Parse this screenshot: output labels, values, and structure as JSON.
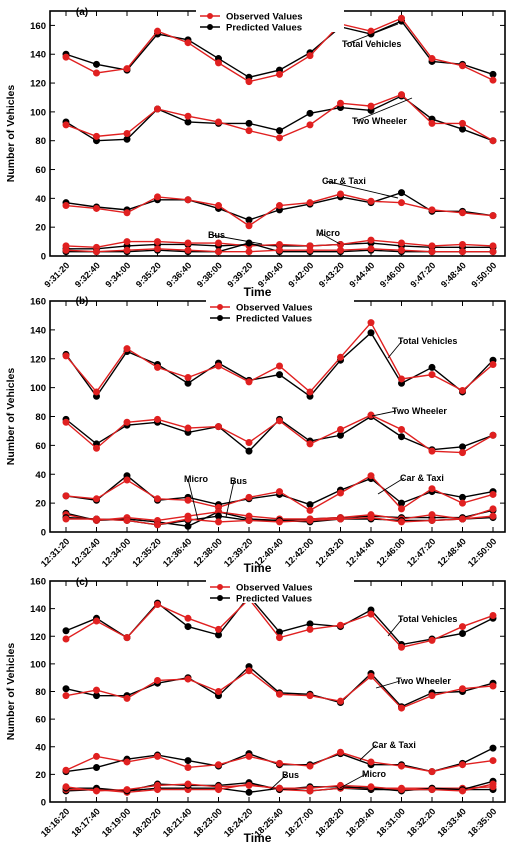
{
  "chart_data": [
    {
      "type": "line",
      "panel_label": "(a)",
      "ylabel": "Number of Vehicles",
      "xlabel": "Time",
      "ylim": [
        0,
        170
      ],
      "yticks": [
        0,
        20,
        40,
        60,
        80,
        100,
        120,
        140,
        160
      ],
      "categories": [
        "9:31:20",
        "9:32:40",
        "9:34:00",
        "9:35:20",
        "9:36:40",
        "9:38:00",
        "9:39:20",
        "9:40:40",
        "9:42:00",
        "9:43:20",
        "9:44:40",
        "9:46:00",
        "9:47:20",
        "9:48:40",
        "9:50:00"
      ],
      "legend": {
        "position": "top-center",
        "entries": [
          {
            "name": "Observed Values",
            "color": "#e02020"
          },
          {
            "name": "Predicted Values",
            "color": "#000000"
          }
        ]
      },
      "groups": [
        {
          "label": "Total Vehicles",
          "observed": [
            138,
            127,
            130,
            156,
            148,
            134,
            121,
            126,
            139,
            161,
            156,
            165,
            137,
            132,
            122
          ],
          "predicted": [
            140,
            133,
            129,
            154,
            150,
            137,
            124,
            129,
            141,
            159,
            154,
            163,
            135,
            133,
            126
          ]
        },
        {
          "label": "Two Wheeler",
          "observed": [
            91,
            83,
            85,
            102,
            97,
            93,
            87,
            82,
            91,
            106,
            104,
            112,
            92,
            92,
            80
          ],
          "predicted": [
            93,
            80,
            81,
            102,
            93,
            92,
            92,
            87,
            99,
            103,
            101,
            111,
            95,
            88,
            80
          ]
        },
        {
          "label": "Car & Taxi",
          "observed": [
            35,
            33,
            30,
            41,
            39,
            35,
            21,
            35,
            37,
            43,
            38,
            37,
            32,
            30,
            28
          ],
          "predicted": [
            37,
            34,
            32,
            39,
            39,
            33,
            25,
            32,
            36,
            41,
            37,
            44,
            31,
            31,
            28
          ]
        },
        {
          "label": "Micro",
          "observed": [
            7,
            6,
            10,
            10,
            9,
            9,
            7,
            8,
            7,
            8,
            11,
            9,
            7,
            8,
            7
          ],
          "predicted": [
            5,
            5,
            7,
            8,
            8,
            7,
            8,
            7,
            7,
            8,
            9,
            7,
            6,
            6,
            6
          ]
        },
        {
          "label": "Bus",
          "observed": [
            4,
            3,
            4,
            5,
            4,
            3,
            3,
            4,
            4,
            4,
            5,
            4,
            3,
            3,
            3
          ],
          "predicted": [
            3,
            3,
            3,
            4,
            3,
            3,
            9,
            3,
            3,
            3,
            4,
            3,
            3,
            3,
            3
          ]
        }
      ]
    },
    {
      "type": "line",
      "panel_label": "(b)",
      "ylabel": "Number of Vehicles",
      "xlabel": "Time",
      "ylim": [
        0,
        160
      ],
      "yticks": [
        0,
        20,
        40,
        60,
        80,
        100,
        120,
        140,
        160
      ],
      "categories": [
        "12:31:20",
        "12:32:40",
        "12:34:00",
        "12:35:20",
        "12:36:40",
        "12:38:00",
        "12:39:20",
        "12:40:40",
        "12:42:00",
        "12:43:20",
        "12:44:40",
        "12:46:00",
        "12:47:20",
        "12:48:40",
        "12:50:00"
      ],
      "legend": {
        "position": "top-center",
        "entries": [
          {
            "name": "Observed Values",
            "color": "#e02020"
          },
          {
            "name": "Predicted Values",
            "color": "#000000"
          }
        ]
      },
      "groups": [
        {
          "label": "Total Vehicles",
          "observed": [
            122,
            97,
            127,
            114,
            107,
            115,
            104,
            115,
            97,
            121,
            145,
            106,
            109,
            98,
            116
          ],
          "predicted": [
            123,
            94,
            125,
            116,
            103,
            117,
            105,
            109,
            94,
            119,
            138,
            103,
            114,
            97,
            119
          ]
        },
        {
          "label": "Two Wheeler",
          "observed": [
            76,
            58,
            76,
            78,
            72,
            73,
            62,
            77,
            61,
            71,
            81,
            71,
            56,
            55,
            67
          ],
          "predicted": [
            78,
            61,
            74,
            76,
            69,
            73,
            56,
            78,
            63,
            67,
            80,
            66,
            57,
            59,
            67
          ]
        },
        {
          "label": "Car & Taxi",
          "observed": [
            25,
            23,
            36,
            23,
            22,
            17,
            24,
            28,
            15,
            27,
            39,
            16,
            30,
            20,
            26
          ],
          "predicted": [
            25,
            22,
            39,
            22,
            24,
            19,
            23,
            26,
            19,
            29,
            37,
            20,
            28,
            24,
            28
          ]
        },
        {
          "label": "Micro",
          "observed": [
            12,
            8,
            10,
            8,
            11,
            14,
            11,
            9,
            9,
            10,
            12,
            9,
            12,
            9,
            16
          ],
          "predicted": [
            13,
            8,
            9,
            7,
            4,
            14,
            9,
            8,
            9,
            10,
            11,
            10,
            10,
            10,
            15
          ]
        },
        {
          "label": "Bus",
          "observed": [
            9,
            9,
            8,
            5,
            9,
            7,
            8,
            7,
            8,
            9,
            10,
            7,
            8,
            9,
            11
          ],
          "predicted": [
            10,
            9,
            8,
            5,
            8,
            11,
            8,
            8,
            7,
            9,
            9,
            8,
            8,
            9,
            10
          ]
        }
      ]
    },
    {
      "type": "line",
      "panel_label": "(c)",
      "ylabel": "Number of Vehicles",
      "xlabel": "Time",
      "ylim": [
        0,
        160
      ],
      "yticks": [
        0,
        20,
        40,
        60,
        80,
        100,
        120,
        140,
        160
      ],
      "categories": [
        "18:16:20",
        "18:17:40",
        "18:19:00",
        "18:20:20",
        "18:21:40",
        "18:23:00",
        "18:24:20",
        "18:25:40",
        "18:27:00",
        "18:28:20",
        "18:29:40",
        "18:31:00",
        "18:32:20",
        "18:33:40",
        "18:35:00"
      ],
      "legend": {
        "position": "top-center",
        "entries": [
          {
            "name": "Observed Values",
            "color": "#e02020"
          },
          {
            "name": "Predicted Values",
            "color": "#000000"
          }
        ]
      },
      "groups": [
        {
          "label": "Total Vehicles",
          "observed": [
            118,
            131,
            119,
            143,
            133,
            125,
            147,
            119,
            125,
            128,
            136,
            112,
            117,
            127,
            135
          ],
          "predicted": [
            124,
            133,
            119,
            144,
            127,
            121,
            149,
            123,
            129,
            127,
            139,
            114,
            118,
            122,
            133
          ]
        },
        {
          "label": "Two Wheeler",
          "observed": [
            77,
            81,
            75,
            88,
            89,
            80,
            95,
            78,
            77,
            73,
            91,
            68,
            77,
            82,
            84
          ],
          "predicted": [
            82,
            77,
            77,
            86,
            90,
            77,
            98,
            79,
            78,
            72,
            93,
            69,
            79,
            80,
            86
          ]
        },
        {
          "label": "Car & Taxi",
          "observed": [
            23,
            33,
            29,
            33,
            25,
            27,
            33,
            28,
            26,
            36,
            29,
            26,
            22,
            27,
            30
          ],
          "predicted": [
            22,
            25,
            31,
            34,
            30,
            26,
            35,
            27,
            27,
            35,
            27,
            27,
            22,
            28,
            39
          ]
        },
        {
          "label": "Bus",
          "observed": [
            9,
            9,
            7,
            9,
            9,
            9,
            13,
            9,
            8,
            10,
            10,
            10,
            10,
            10,
            11
          ],
          "predicted": [
            8,
            9,
            8,
            10,
            10,
            10,
            7,
            10,
            8,
            10,
            9,
            9,
            9,
            9,
            9
          ]
        },
        {
          "label": "Micro",
          "observed": [
            11,
            8,
            9,
            12,
            13,
            11,
            12,
            10,
            10,
            12,
            11,
            9,
            9,
            8,
            13
          ],
          "predicted": [
            10,
            10,
            8,
            13,
            12,
            12,
            14,
            9,
            11,
            11,
            10,
            8,
            10,
            9,
            15
          ]
        }
      ]
    }
  ]
}
